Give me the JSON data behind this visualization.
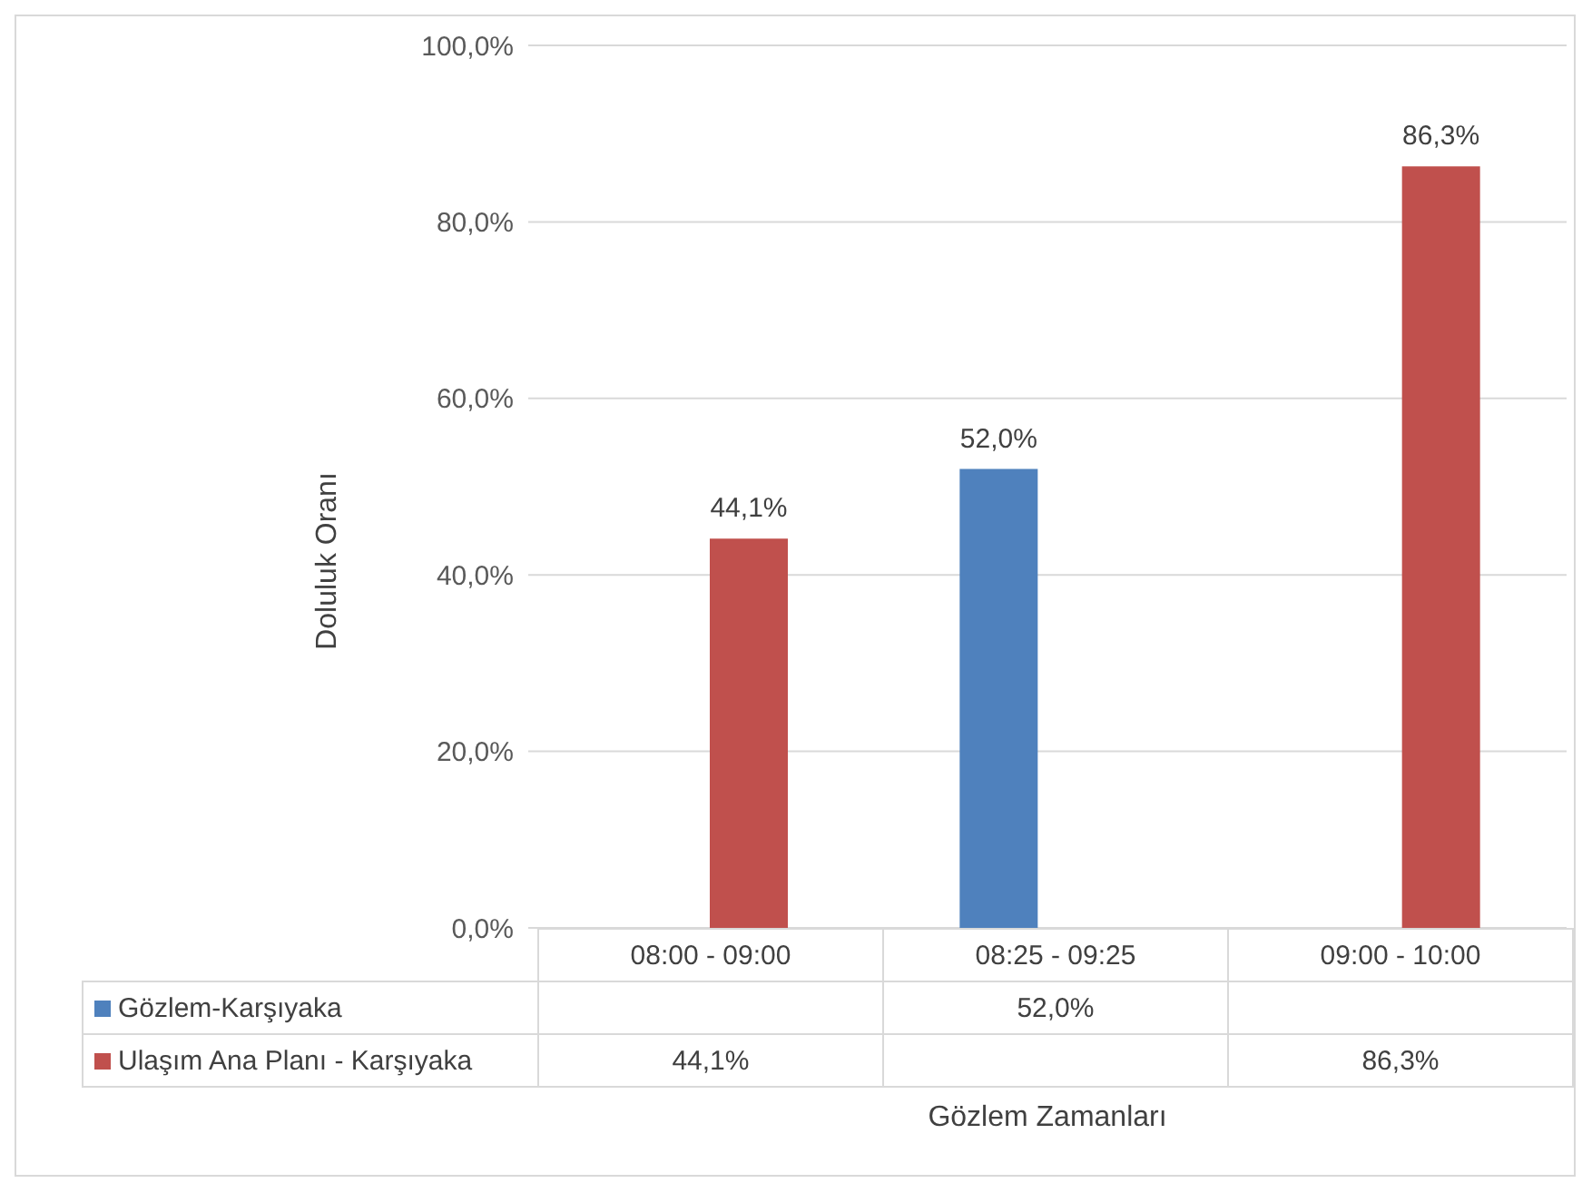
{
  "chart_data": {
    "type": "bar",
    "xlabel": "Gözlem Zamanları",
    "ylabel": "Doluluk Oranı",
    "categories": [
      "08:00 - 09:00",
      "08:25 - 09:25",
      "09:00 - 10:00"
    ],
    "series": [
      {
        "name": "Gözlem-Karşıyaka",
        "color": "#4f81bd",
        "values": [
          null,
          52.0,
          null
        ],
        "value_labels": [
          null,
          "52,0%",
          null
        ]
      },
      {
        "name": "Ulaşım Ana Planı - Karşıyaka",
        "color": "#c0504d",
        "values": [
          44.1,
          null,
          86.3
        ],
        "value_labels": [
          "44,1%",
          null,
          "86,3%"
        ]
      }
    ],
    "ylim": [
      0,
      100
    ],
    "yticks": [
      {
        "value": 0,
        "label": "0,0%"
      },
      {
        "value": 20,
        "label": "20,0%"
      },
      {
        "value": 40,
        "label": "40,0%"
      },
      {
        "value": 60,
        "label": "60,0%"
      },
      {
        "value": 80,
        "label": "80,0%"
      },
      {
        "value": 100,
        "label": "100,0%"
      }
    ],
    "grid": "y",
    "legend": "bottom"
  }
}
